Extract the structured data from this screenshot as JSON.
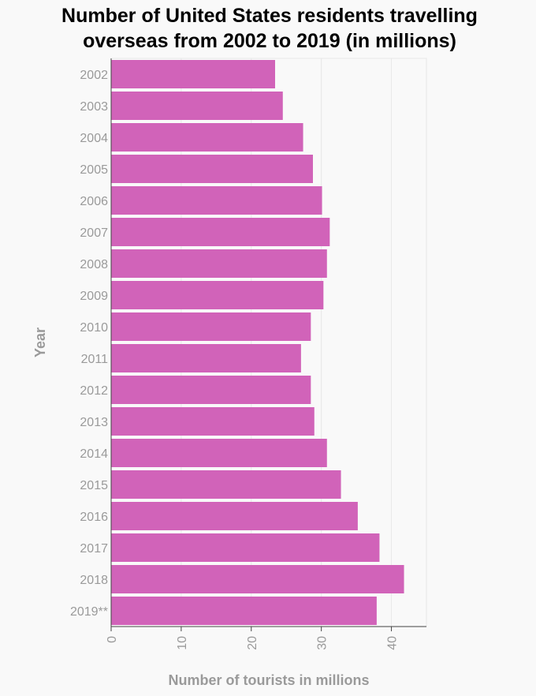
{
  "chart_data": {
    "type": "bar",
    "orientation": "horizontal",
    "title": "Number of United States residents travelling overseas from 2002 to 2019 (in millions)",
    "title_lines": [
      "Number of United States residents travelling",
      "overseas from 2002 to 2019 (in millions)"
    ],
    "xlabel": "Number of tourists in millions",
    "ylabel": "Year",
    "xlim": [
      0,
      45
    ],
    "xticks": [
      0,
      10,
      20,
      30,
      40
    ],
    "grid": true,
    "bar_color": "#d163b9",
    "categories": [
      "2002",
      "2003",
      "2004",
      "2005",
      "2006",
      "2007",
      "2008",
      "2009",
      "2010",
      "2011",
      "2012",
      "2013",
      "2014",
      "2015",
      "2016",
      "2017",
      "2018",
      "2019**"
    ],
    "values": [
      23.4,
      24.5,
      27.4,
      28.8,
      30.1,
      31.2,
      30.8,
      30.3,
      28.5,
      27.1,
      28.5,
      29.0,
      30.8,
      32.8,
      35.2,
      38.3,
      41.8,
      37.9
    ]
  }
}
